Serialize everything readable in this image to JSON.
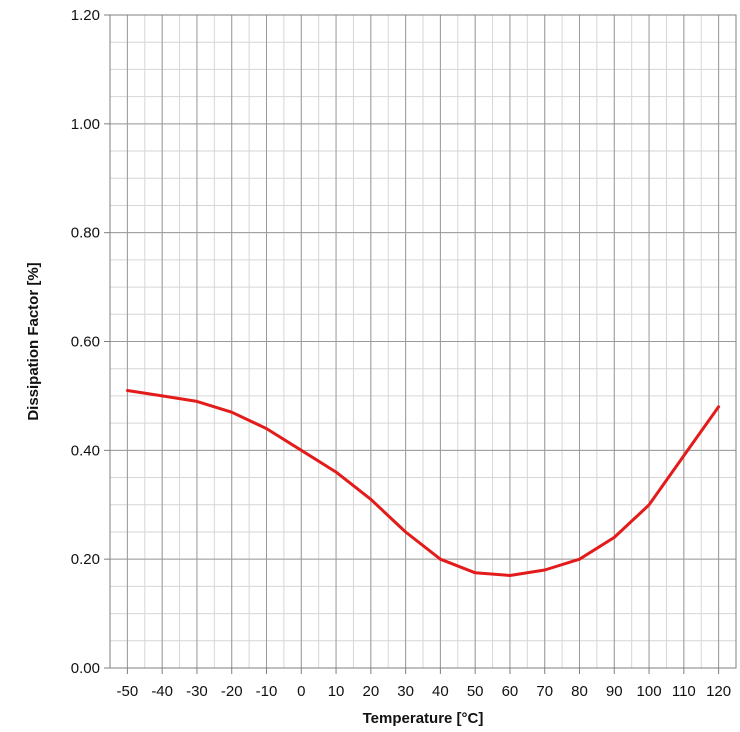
{
  "chart_data": {
    "type": "line",
    "title": "",
    "xlabel": "Temperature [°C]",
    "ylabel": "Dissipation Factor [%]",
    "xlim": [
      -55,
      125
    ],
    "ylim": [
      0.0,
      1.2
    ],
    "x_ticks": [
      -50,
      -40,
      -30,
      -20,
      -10,
      0,
      10,
      20,
      30,
      40,
      50,
      60,
      70,
      80,
      90,
      100,
      110,
      120
    ],
    "x_tick_labels": [
      "-50",
      "-40",
      "-30",
      "-20",
      "-10",
      "0",
      "10",
      "20",
      "30",
      "40",
      "50",
      "60",
      "70",
      "80",
      "90",
      "100",
      "110",
      "120"
    ],
    "y_ticks": [
      0.0,
      0.2,
      0.4,
      0.6,
      0.8,
      1.0,
      1.2
    ],
    "y_tick_labels": [
      "0.00",
      "0.20",
      "0.40",
      "0.60",
      "0.80",
      "1.00",
      "1.20"
    ],
    "x_minor_step": 5,
    "y_minor_step": 0.05,
    "grid": true,
    "series": [
      {
        "color": "#e31b1b",
        "x": [
          -50,
          -40,
          -30,
          -20,
          -10,
          0,
          10,
          20,
          30,
          40,
          50,
          60,
          70,
          80,
          90,
          100,
          110,
          120
        ],
        "y": [
          0.51,
          0.5,
          0.49,
          0.47,
          0.44,
          0.4,
          0.36,
          0.31,
          0.25,
          0.2,
          0.175,
          0.17,
          0.18,
          0.2,
          0.24,
          0.3,
          0.39,
          0.48
        ]
      }
    ]
  }
}
